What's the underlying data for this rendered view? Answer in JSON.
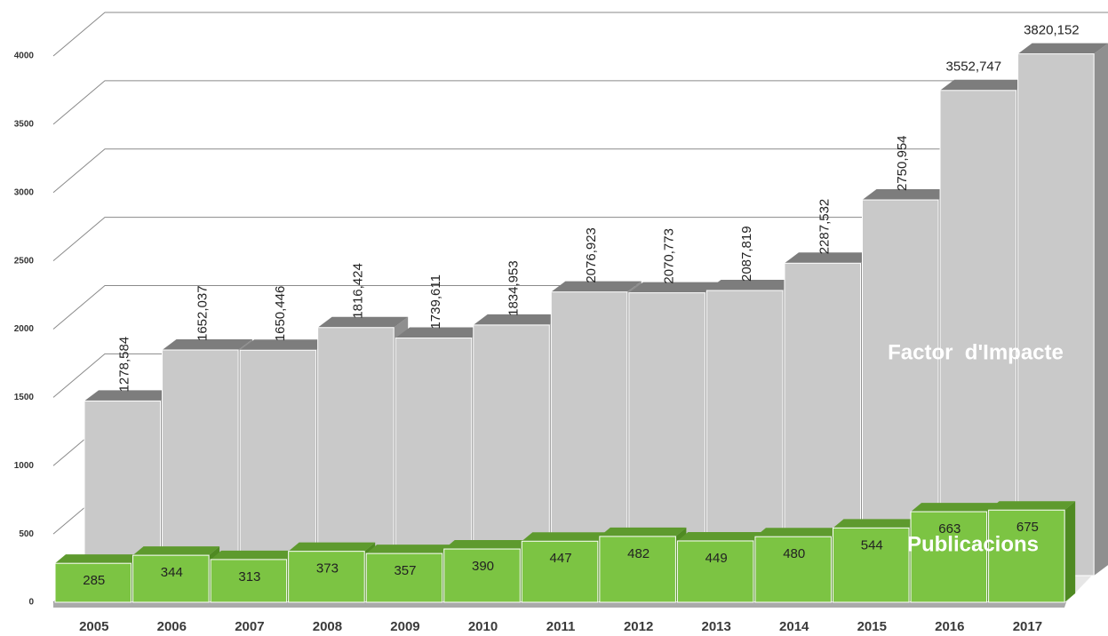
{
  "chart_data": {
    "type": "bar3d",
    "categories": [
      "2005",
      "2006",
      "2007",
      "2008",
      "2009",
      "2010",
      "2011",
      "2012",
      "2013",
      "2014",
      "2015",
      "2016",
      "2017"
    ],
    "series": [
      {
        "name": "Factor  d'Impacte",
        "color": "#c9c9c9",
        "values": [
          1278.584,
          1652.037,
          1650.446,
          1816.424,
          1739.611,
          1834.953,
          2076.923,
          2070.773,
          2087.819,
          2287.532,
          2750.954,
          3552.747,
          3820.152
        ],
        "value_labels": [
          "1278,584",
          "1652,037",
          "1650,446",
          "1816,424",
          "1739,611",
          "1834,953",
          "2076,923",
          "2070,773",
          "2087,819",
          "2287,532",
          "2750,954",
          "3552,747",
          "3820,152"
        ]
      },
      {
        "name": "Publicacions",
        "color": "#7cc443",
        "values": [
          285,
          344,
          313,
          373,
          357,
          390,
          447,
          482,
          449,
          480,
          544,
          663,
          675
        ]
      }
    ],
    "ylim": [
      0,
      4000
    ],
    "yticks": [
      0,
      500,
      1000,
      1500,
      2000,
      2500,
      3000,
      3500,
      4000
    ],
    "grid": true
  }
}
